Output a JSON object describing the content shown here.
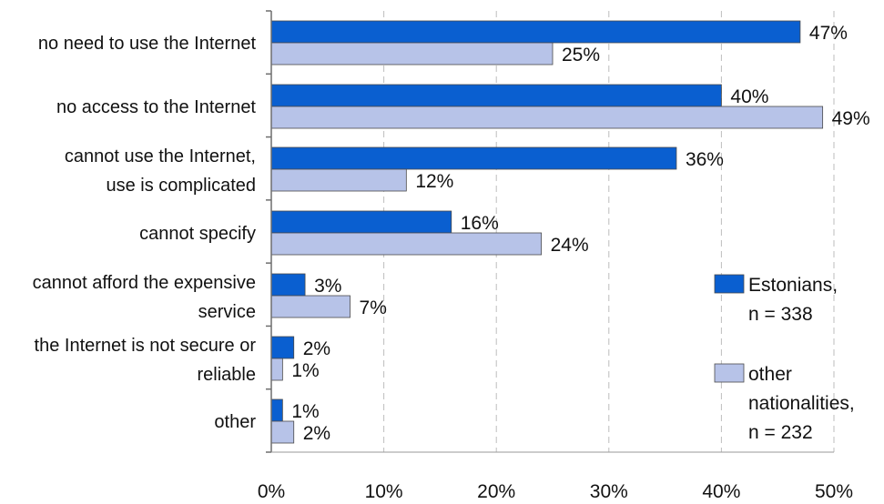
{
  "chart_data": {
    "type": "bar",
    "orientation": "horizontal",
    "categories": [
      [
        "no need to use the Internet"
      ],
      [
        "no access to the Internet"
      ],
      [
        "cannot use the Internet,",
        "use is complicated"
      ],
      [
        "cannot specify"
      ],
      [
        "cannot afford the expensive",
        "service"
      ],
      [
        "the Internet is not secure or",
        "reliable"
      ],
      [
        "other"
      ]
    ],
    "series": [
      {
        "name": [
          "Estonians,",
          "n = 338"
        ],
        "color": "#0a5fd0",
        "values": [
          47,
          40,
          36,
          16,
          3,
          2,
          1
        ],
        "labels": [
          "47%",
          "40%",
          "36%",
          "16%",
          "3%",
          "2%",
          "1%"
        ]
      },
      {
        "name": [
          "other",
          "nationalities,",
          "n = 232"
        ],
        "color": "#b7c3e8",
        "values": [
          25,
          49,
          12,
          24,
          7,
          1,
          2
        ],
        "labels": [
          "25%",
          "49%",
          "12%",
          "24%",
          "7%",
          "1%",
          "2%"
        ]
      }
    ],
    "xlim": [
      0,
      50
    ],
    "x_ticks": [
      "0%",
      "10%",
      "20%",
      "30%",
      "40%",
      "50%"
    ],
    "grid": "vertical dashed",
    "legend_position": "right",
    "title": "",
    "xlabel": "",
    "ylabel": ""
  }
}
